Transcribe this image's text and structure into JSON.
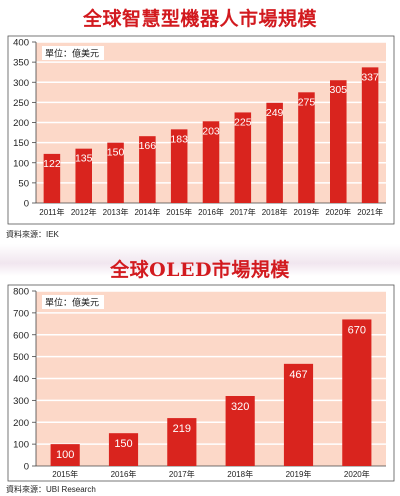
{
  "chart_data": [
    {
      "type": "bar",
      "title": "全球智慧型機器人市場規模",
      "unit_label": "單位：億美元",
      "source": "資料來源：IEK",
      "categories": [
        "2011年",
        "2012年",
        "2013年",
        "2014年",
        "2015年",
        "2016年",
        "2017年",
        "2018年",
        "2019年",
        "2020年",
        "2021年"
      ],
      "values": [
        122,
        135,
        150,
        166,
        183,
        203,
        225,
        249,
        275,
        305,
        337
      ],
      "ylim": [
        0,
        400
      ],
      "yticks": [
        0,
        50,
        100,
        150,
        200,
        250,
        300,
        350,
        400
      ],
      "grid": true,
      "legend": "none",
      "colors": {
        "bar": "#d9241e",
        "plot_bg": "#fcd8c8",
        "label": "#ffffff"
      }
    },
    {
      "type": "bar",
      "title": "全球OLED市場規模",
      "unit_label": "單位：億美元",
      "source": "資料來源：UBI Research",
      "categories": [
        "2015年",
        "2016年",
        "2017年",
        "2018年",
        "2019年",
        "2020年"
      ],
      "values": [
        100,
        150,
        219,
        320,
        467,
        670
      ],
      "ylim": [
        0,
        800
      ],
      "yticks": [
        0,
        100,
        200,
        300,
        400,
        500,
        600,
        700,
        800
      ],
      "grid": true,
      "legend": "none",
      "colors": {
        "bar": "#d9241e",
        "plot_bg": "#fcd8c8",
        "label": "#ffffff"
      }
    }
  ]
}
